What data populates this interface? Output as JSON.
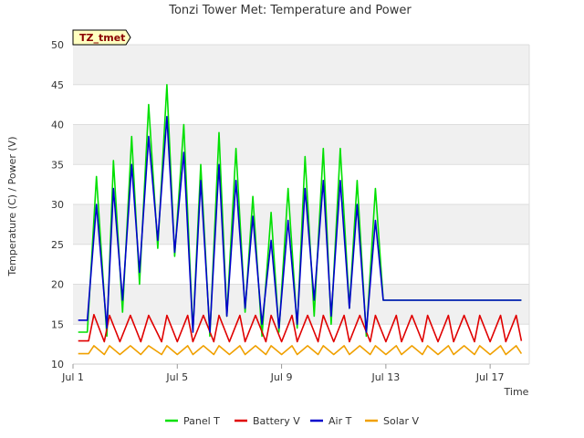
{
  "chart_data": {
    "type": "line",
    "title": "Tonzi Tower Met: Temperature and Power",
    "badge": "TZ_tmet",
    "xlabel": "Time",
    "ylabel": "Temperature (C) / Power (V)",
    "xlim": [
      1.0,
      18.5
    ],
    "ylim": [
      10,
      50
    ],
    "yticks": [
      10,
      15,
      20,
      25,
      30,
      35,
      40,
      45,
      50
    ],
    "xticks": [
      {
        "day": 1,
        "label": "Jul 1"
      },
      {
        "day": 5,
        "label": "Jul 5"
      },
      {
        "day": 9,
        "label": "Jul 9"
      },
      {
        "day": 13,
        "label": "Jul 13"
      },
      {
        "day": 17,
        "label": "Jul 17"
      }
    ],
    "x_units": "day of July",
    "series": [
      {
        "name": "Panel T",
        "color": "#00e000",
        "x": [
          1.2,
          1.55,
          1.9,
          2.3,
          2.55,
          2.9,
          3.25,
          3.55,
          3.9,
          4.25,
          4.6,
          4.9,
          5.25,
          5.6,
          5.9,
          6.25,
          6.6,
          6.9,
          7.25,
          7.6,
          7.9,
          8.25,
          8.6,
          8.9,
          9.25,
          9.6,
          9.9,
          10.25,
          10.6,
          10.9,
          11.25,
          11.6,
          11.9,
          12.25,
          12.6,
          12.9,
          13.25,
          13.6,
          13.9,
          14.25,
          14.6,
          14.9,
          15.25,
          15.6,
          15.9,
          16.25,
          16.6,
          16.9,
          17.25,
          17.6,
          17.9,
          18.2
        ],
        "values": [
          14,
          14,
          33.5,
          13.5,
          35.5,
          16.5,
          38.5,
          20,
          42.5,
          24.5,
          45,
          23.5,
          40,
          14,
          35,
          13.5,
          39,
          16,
          37,
          16.5,
          31,
          13.5,
          29,
          14,
          32,
          14.5,
          36,
          16,
          37,
          15,
          37,
          17,
          33,
          13.5,
          32,
          18,
          18,
          18,
          18,
          18,
          18,
          18,
          18,
          18,
          18,
          18,
          18,
          18,
          18,
          18,
          18,
          18
        ]
      },
      {
        "name": "Battery V",
        "color": "#e00000",
        "x": [
          1.2,
          1.6,
          1.8,
          2.2,
          2.4,
          2.8,
          3.2,
          3.6,
          3.9,
          4.4,
          4.6,
          5.0,
          5.4,
          5.6,
          6.0,
          6.4,
          6.6,
          7.0,
          7.4,
          7.6,
          8.0,
          8.4,
          8.6,
          9.0,
          9.4,
          9.6,
          10.0,
          10.4,
          10.6,
          11.0,
          11.4,
          11.6,
          12.0,
          12.4,
          12.6,
          13.0,
          13.4,
          13.6,
          14.0,
          14.4,
          14.6,
          15.0,
          15.4,
          15.6,
          16.0,
          16.4,
          16.6,
          17.0,
          17.4,
          17.6,
          18.0,
          18.2
        ],
        "values": [
          12.9,
          12.9,
          16.2,
          12.8,
          16.1,
          12.8,
          16.1,
          12.8,
          16.1,
          12.8,
          16.1,
          12.8,
          16.1,
          12.8,
          16.1,
          12.8,
          16.1,
          12.8,
          16.1,
          12.8,
          16.1,
          12.8,
          16.1,
          12.8,
          16.1,
          12.8,
          16.1,
          12.8,
          16.1,
          12.8,
          16.1,
          12.8,
          16.1,
          12.8,
          16.1,
          12.8,
          16.1,
          12.8,
          16.1,
          12.8,
          16.1,
          12.8,
          16.1,
          12.8,
          16.1,
          12.8,
          16.1,
          12.8,
          16.1,
          12.8,
          16.1,
          12.9
        ]
      },
      {
        "name": "Air T",
        "color": "#0000cc",
        "x": [
          1.2,
          1.55,
          1.9,
          2.3,
          2.55,
          2.9,
          3.25,
          3.55,
          3.9,
          4.25,
          4.6,
          4.9,
          5.25,
          5.6,
          5.9,
          6.25,
          6.6,
          6.9,
          7.25,
          7.6,
          7.9,
          8.25,
          8.6,
          8.9,
          9.25,
          9.6,
          9.9,
          10.25,
          10.6,
          10.9,
          11.25,
          11.6,
          11.9,
          12.25,
          12.6,
          12.9,
          13.25,
          13.6,
          13.9,
          14.25,
          14.6,
          14.9,
          15.25,
          15.6,
          15.9,
          16.25,
          16.6,
          16.9,
          17.25,
          17.6,
          17.9,
          18.2
        ],
        "values": [
          15.5,
          15.5,
          30,
          14.5,
          32,
          18,
          35,
          21.5,
          38.5,
          25.5,
          41,
          24,
          36.5,
          14,
          33,
          14,
          35,
          16,
          33,
          17,
          28.5,
          15,
          25.5,
          14.5,
          28,
          15,
          32,
          18,
          33,
          16,
          33,
          17,
          30,
          14,
          28,
          18,
          18,
          18,
          18,
          18,
          18,
          18,
          18,
          18,
          18,
          18,
          18,
          18,
          18,
          18,
          18,
          18
        ]
      },
      {
        "name": "Solar V",
        "color": "#f0a000",
        "x": [
          1.2,
          1.6,
          1.8,
          2.2,
          2.4,
          2.8,
          3.2,
          3.6,
          3.9,
          4.4,
          4.6,
          5.0,
          5.4,
          5.6,
          6.0,
          6.4,
          6.6,
          7.0,
          7.4,
          7.6,
          8.0,
          8.4,
          8.6,
          9.0,
          9.4,
          9.6,
          10.0,
          10.4,
          10.6,
          11.0,
          11.4,
          11.6,
          12.0,
          12.4,
          12.6,
          13.0,
          13.4,
          13.6,
          14.0,
          14.4,
          14.6,
          15.0,
          15.4,
          15.6,
          16.0,
          16.4,
          16.6,
          17.0,
          17.4,
          17.6,
          18.0,
          18.2
        ],
        "values": [
          11.3,
          11.3,
          12.3,
          11.2,
          12.3,
          11.2,
          12.3,
          11.2,
          12.3,
          11.2,
          12.3,
          11.2,
          12.3,
          11.2,
          12.3,
          11.2,
          12.3,
          11.2,
          12.3,
          11.2,
          12.3,
          11.2,
          12.3,
          11.2,
          12.3,
          11.2,
          12.3,
          11.2,
          12.3,
          11.2,
          12.3,
          11.2,
          12.3,
          11.2,
          12.3,
          11.2,
          12.3,
          11.2,
          12.3,
          11.2,
          12.3,
          11.2,
          12.3,
          11.2,
          12.3,
          11.2,
          12.3,
          11.2,
          12.3,
          11.2,
          12.3,
          11.3
        ]
      }
    ]
  }
}
